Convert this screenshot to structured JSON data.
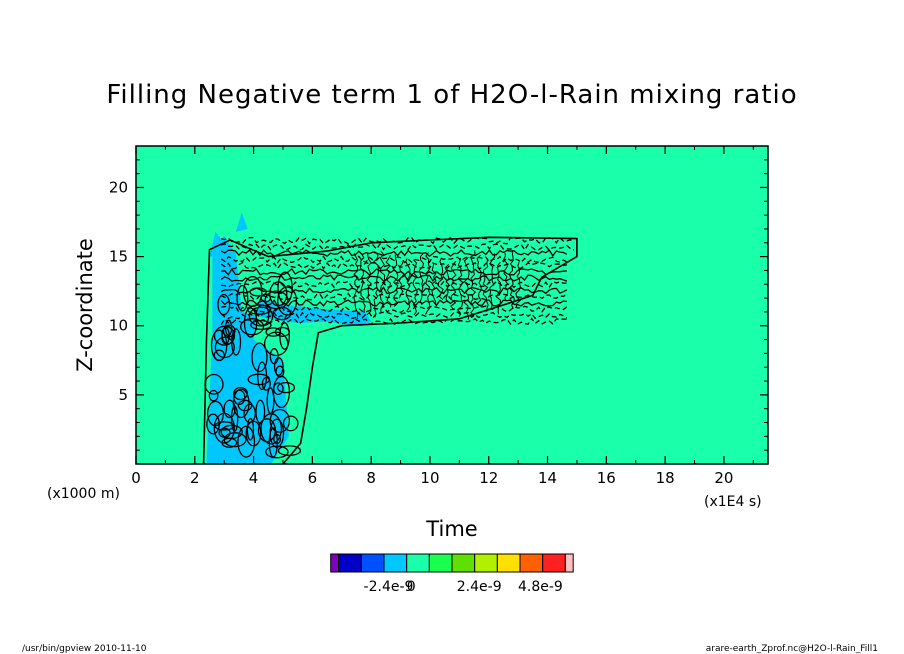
{
  "chart_data": {
    "type": "contour",
    "title": "Filling Negative term 1 of H2O-l-Rain mixing ratio",
    "xlabel": "Time",
    "ylabel": "Z-coordinate",
    "x_unit": "(x1E4 s)",
    "y_unit": "(x1000 m)",
    "xlim": [
      0,
      21.5
    ],
    "ylim": [
      0,
      23
    ],
    "xticks": [
      0,
      2,
      4,
      6,
      8,
      10,
      12,
      14,
      16,
      18,
      20
    ],
    "yticks": [
      5,
      10,
      15,
      20
    ],
    "background_level_color": "#19ffaa",
    "colorbar": {
      "colors": [
        "#8000c0",
        "#0000c8",
        "#0050ff",
        "#00c8ff",
        "#19ffaa",
        "#19ff50",
        "#60e000",
        "#b0f000",
        "#ffe000",
        "#ff6000",
        "#ff2020",
        "#ffc0c0"
      ],
      "tick_labels": [
        "-2.4e-9",
        "0",
        "2.4e-9",
        "4.8e-9"
      ]
    },
    "regions": [
      {
        "name": "negative-filling-core",
        "level_color": "#00c8ff",
        "points": [
          [
            2.4,
            0
          ],
          [
            2.5,
            5
          ],
          [
            2.6,
            9
          ],
          [
            2.6,
            15.5
          ],
          [
            3.0,
            16.5
          ],
          [
            3.4,
            15.2
          ],
          [
            3.6,
            11
          ],
          [
            4.5,
            10.5
          ],
          [
            5.5,
            10.2
          ],
          [
            6.5,
            10.3
          ],
          [
            7.5,
            10.0
          ],
          [
            8.0,
            10.3
          ],
          [
            7.8,
            11
          ],
          [
            6.5,
            11.2
          ],
          [
            5.0,
            11.5
          ],
          [
            4.2,
            12
          ],
          [
            4.0,
            9
          ],
          [
            5.0,
            7.5
          ],
          [
            5.2,
            2
          ],
          [
            4.6,
            0
          ]
        ]
      },
      {
        "name": "upper-fringe",
        "level_color": "#00c8ff",
        "points": [
          [
            2.5,
            15.0
          ],
          [
            2.7,
            16.8
          ],
          [
            3.0,
            16.0
          ],
          [
            2.9,
            15.0
          ]
        ]
      },
      {
        "name": "isolated-spot",
        "level_color": "#00c8ff",
        "points": [
          [
            3.4,
            16.8
          ],
          [
            3.6,
            18.2
          ],
          [
            3.8,
            17.0
          ]
        ]
      }
    ],
    "contour_band": {
      "x_start": 2.3,
      "x_end": 15.0,
      "z_top": 16.3,
      "z_mid_bottom": 10.0,
      "z_low_region_x_end": 5.6
    }
  },
  "footer": {
    "left": "/usr/bin/gpview   2010-11-10",
    "right": "arare-earth_Zprof.nc@H2O-l-Rain_Fill1"
  }
}
